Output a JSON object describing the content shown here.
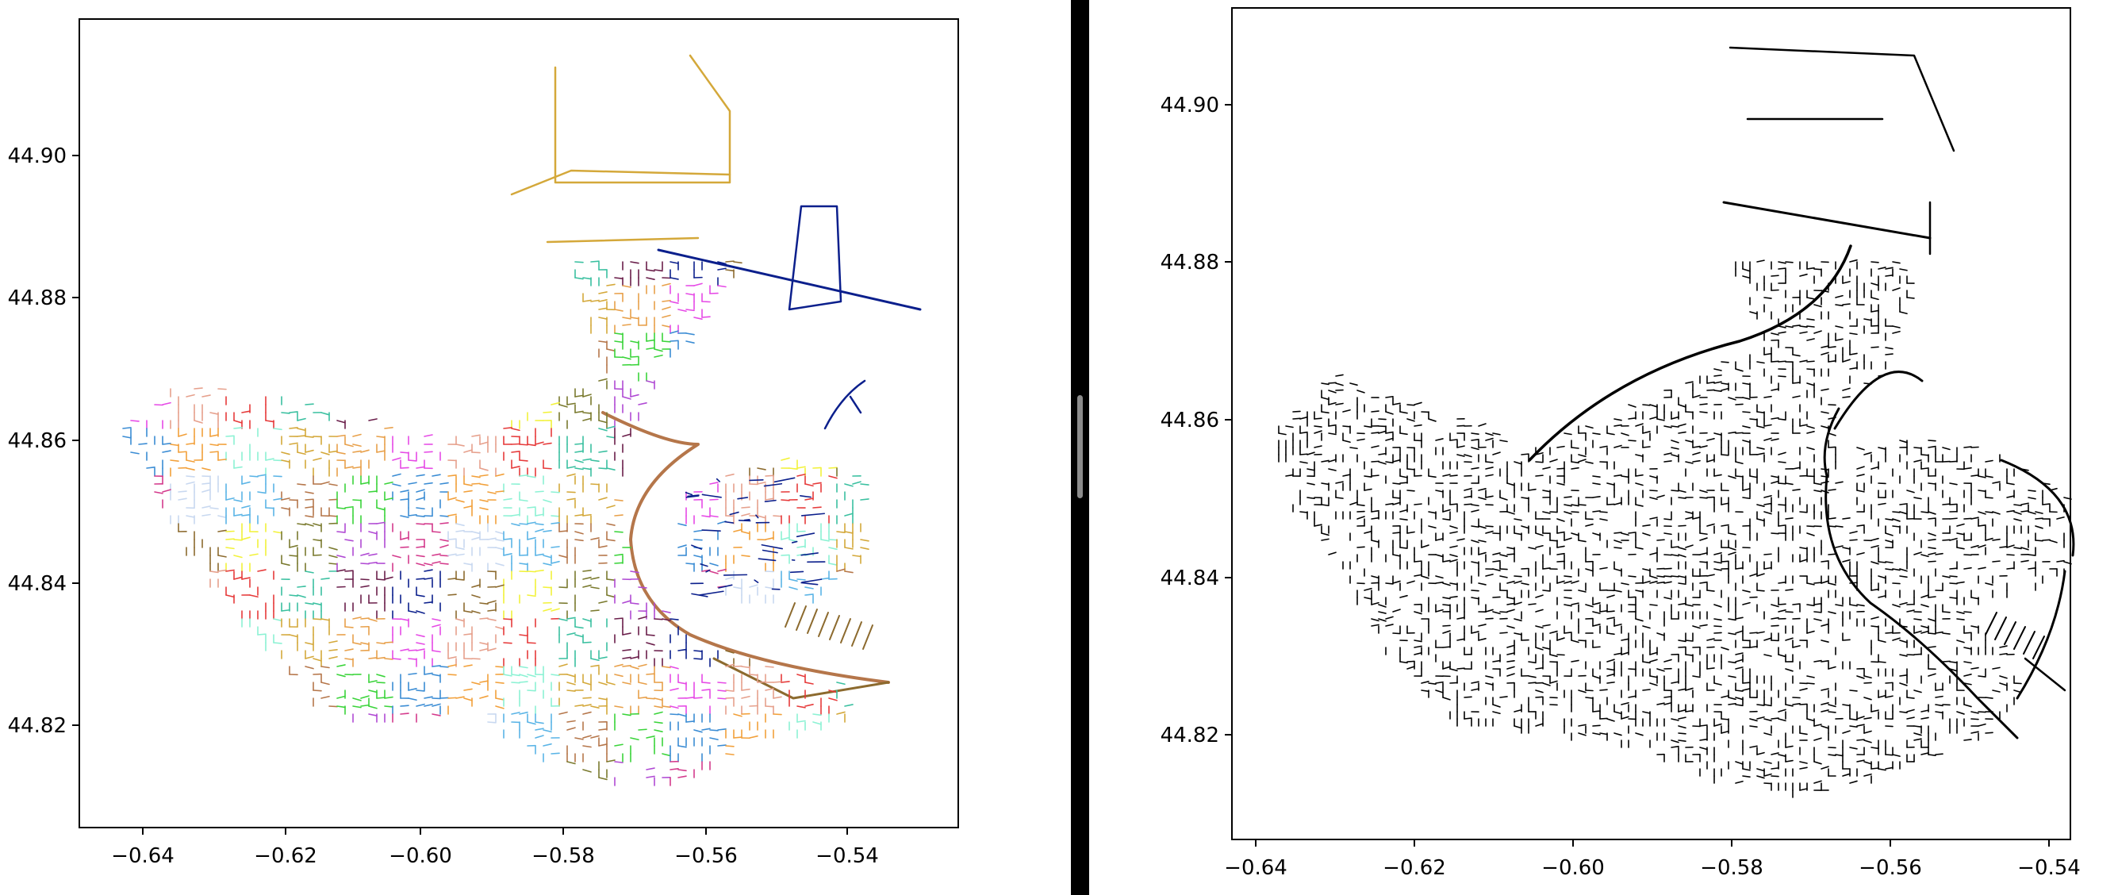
{
  "left_plot": {
    "x_ticks": [
      "−0.64",
      "−0.62",
      "−0.60",
      "−0.58",
      "−0.56",
      "−0.54"
    ],
    "y_ticks": [
      "44.82",
      "44.84",
      "44.86",
      "44.88",
      "44.90"
    ]
  },
  "right_plot": {
    "x_ticks": [
      "−0.64",
      "−0.62",
      "−0.60",
      "−0.58",
      "−0.56",
      "−0.54"
    ],
    "y_ticks": [
      "44.82",
      "44.84",
      "44.86",
      "44.88",
      "44.90"
    ]
  },
  "colors": {
    "left_partitions": [
      "#d4a83a",
      "#0b1f8c",
      "#5ab4e6",
      "#e8a04a",
      "#8c6a2e",
      "#b5764a",
      "#e64ae6",
      "#f2f23a",
      "#3ad43a",
      "#e6a08c",
      "#7a7a2e",
      "#3a8cd4",
      "#e63a3a",
      "#b04ad4",
      "#f2a03a",
      "#3ac0a0",
      "#d43a8c",
      "#8cf2d4",
      "#6a1e4a",
      "#c8d8f0"
    ],
    "right_network": "#000000",
    "divider": "#000000"
  },
  "icons": {
    "divider_handle": "drag-handle-icon"
  }
}
